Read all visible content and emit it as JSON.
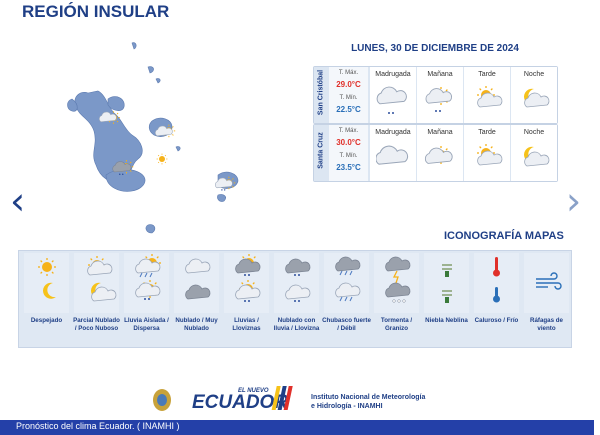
{
  "page": {
    "title": "REGIÓN INSULAR"
  },
  "nav": {
    "prev": "‹",
    "next": "›"
  },
  "forecast": {
    "date": "LUNES, 30 DE DICIEMBRE DE 2024",
    "periods": [
      "Madrugada",
      "Mañana",
      "Tarde",
      "Noche"
    ],
    "max_label": "T. Máx.",
    "min_label": "T. Mín.",
    "islands": [
      {
        "name": "San Cristóbal",
        "tmax": "29.0°C",
        "tmin": "22.5°C",
        "icons": [
          "cloudy-drizzle-icon",
          "partly-cloudy-drizzle-icon",
          "partly-cloudy-icon",
          "night-cloudy-icon"
        ]
      },
      {
        "name": "Santa Cruz",
        "tmax": "30.0°C",
        "tmin": "23.5°C",
        "icons": [
          "cloudy-icon",
          "partly-cloudy-icon",
          "partly-cloudy-icon",
          "night-partly-cloudy-icon"
        ]
      }
    ]
  },
  "iconography": {
    "title": "ICONOGRAFÍA MAPAS",
    "items": [
      {
        "label": "Despejado"
      },
      {
        "label": "Parcial Nublado / Poco Nuboso"
      },
      {
        "label": "Lluvia Aislada / Dispersa"
      },
      {
        "label": "Nublado / Muy Nublado"
      },
      {
        "label": "Lluvias / Lloviznas"
      },
      {
        "label": "Nublado con lluvia / Llovizna"
      },
      {
        "label": "Chubasco fuerte / Débil"
      },
      {
        "label": "Tormenta / Granizo"
      },
      {
        "label": "Niebla Neblina"
      },
      {
        "label": "Caluroso / Frío"
      },
      {
        "label": "Ráfagas de viento"
      }
    ]
  },
  "branding": {
    "logo_top": "EL NUEVO",
    "logo_text": "ECUADOR",
    "institute_line1": "Instituto Nacional de Meteorología",
    "institute_line2": "e Hidrología - INAMHI"
  },
  "footer": {
    "text": "Pronóstico del clima Ecuador.  ( INAMHI )"
  },
  "colors": {
    "brand": "#1f3f86",
    "footer": "#2440a8",
    "tmax": "#e0302a",
    "tmin": "#2a6fb8",
    "land": "#7b98c8"
  }
}
